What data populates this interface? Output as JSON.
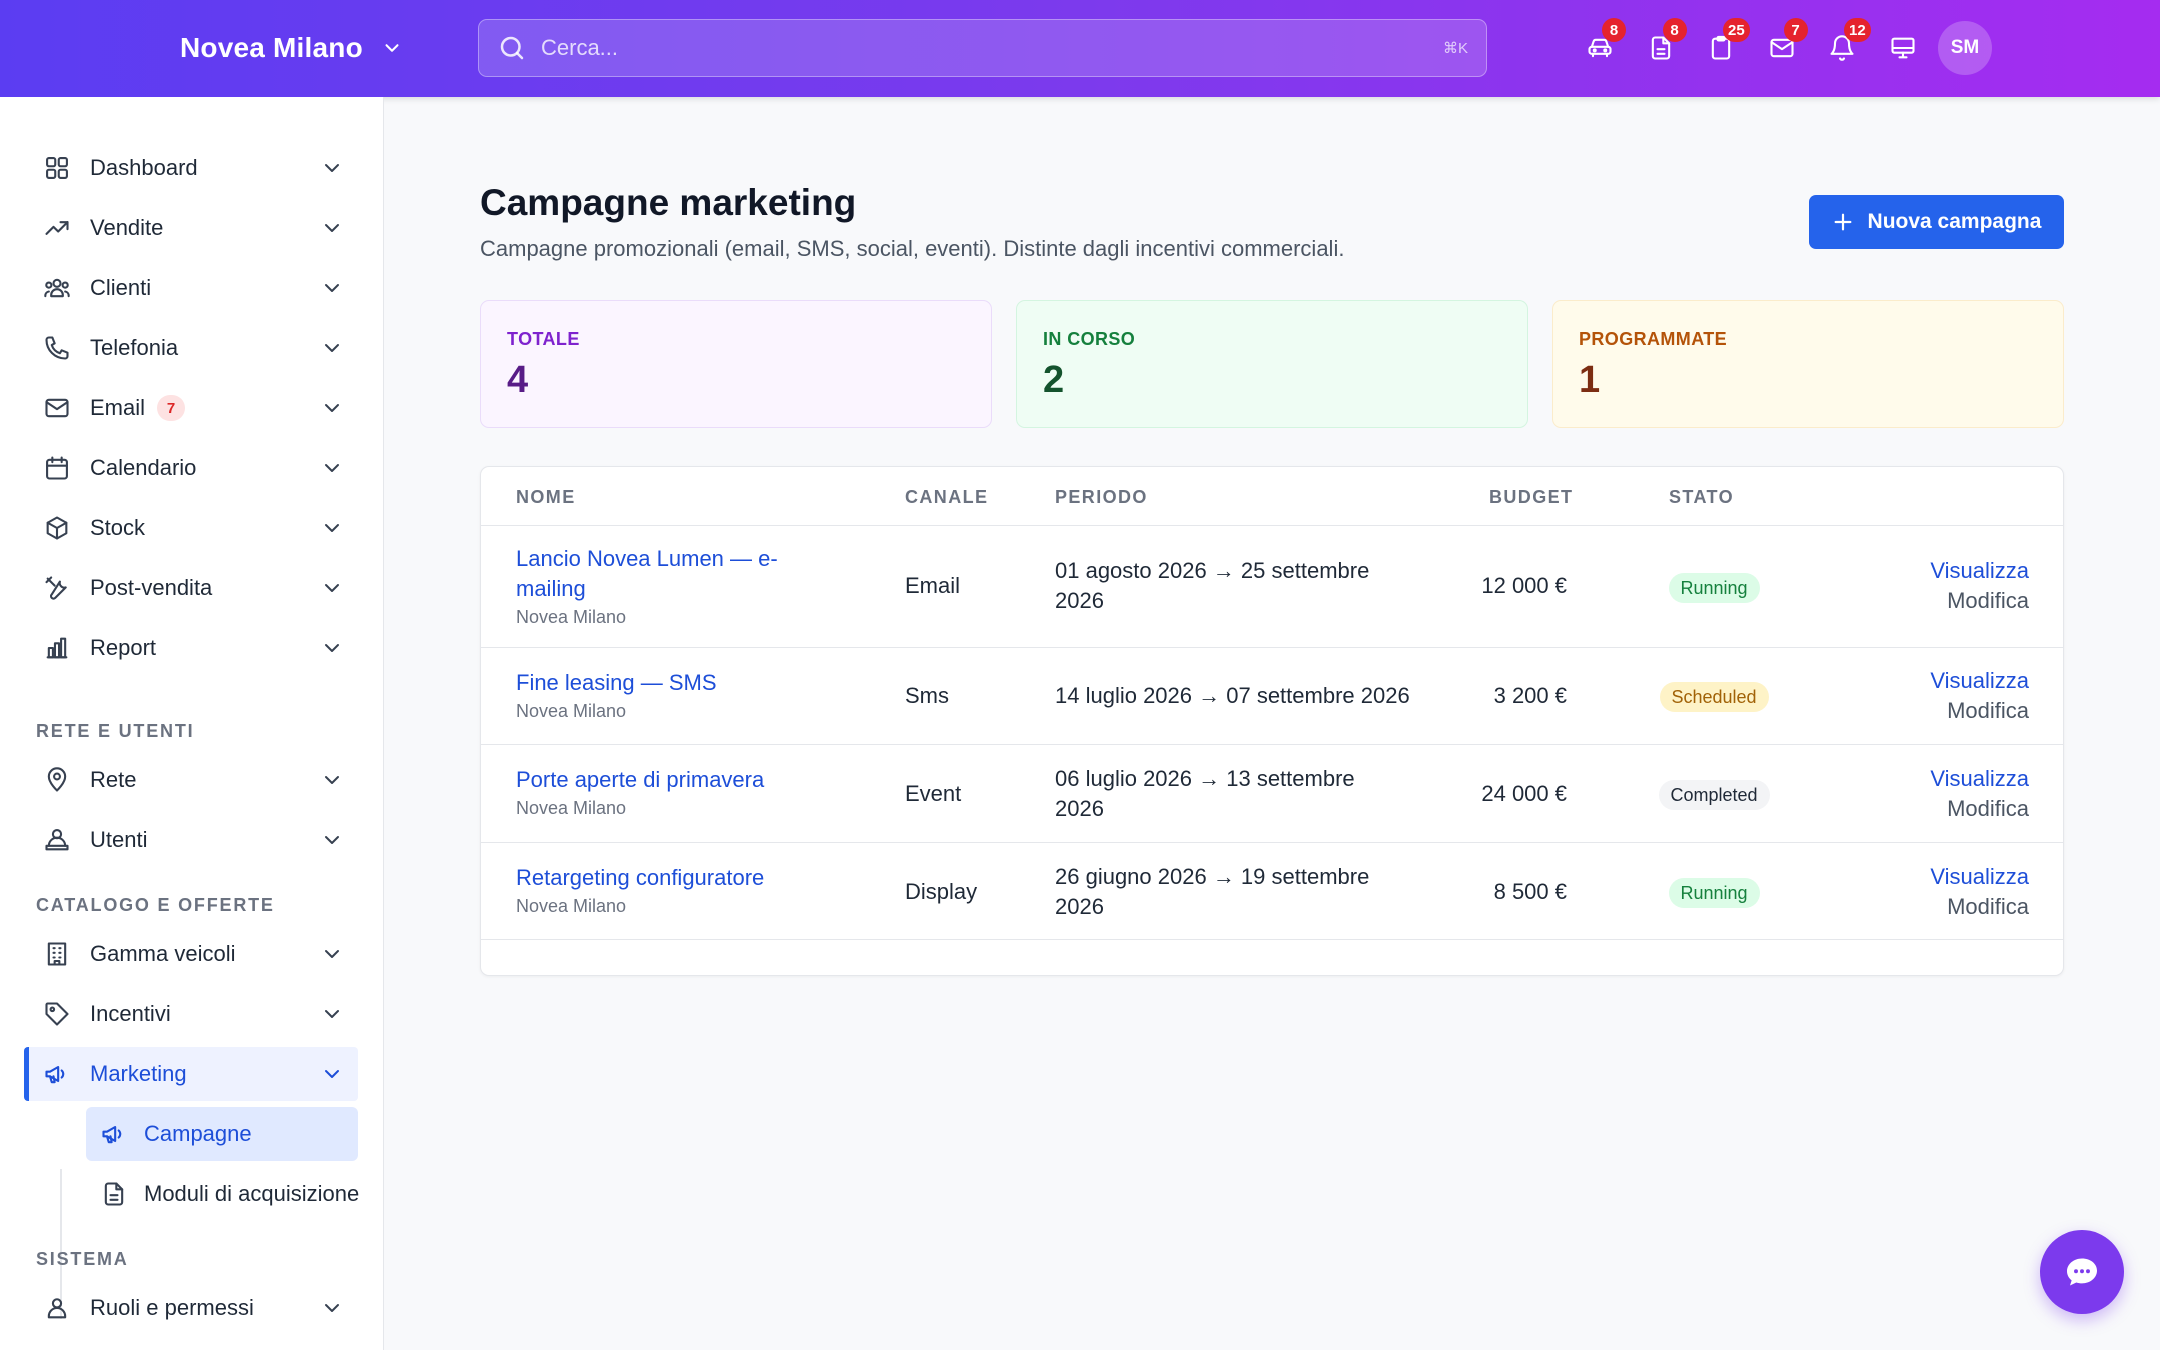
{
  "header": {
    "brand": "Novea Milano",
    "search_placeholder": "Cerca...",
    "search_shortcut": "⌘K",
    "icons": [
      {
        "name": "car-icon",
        "badge": "8"
      },
      {
        "name": "document-icon",
        "badge": "8"
      },
      {
        "name": "clipboard-icon",
        "badge": "25"
      },
      {
        "name": "mail-icon",
        "badge": "7"
      },
      {
        "name": "bell-icon",
        "badge": "12"
      },
      {
        "name": "monitor-icon",
        "badge": ""
      }
    ],
    "avatar_initials": "SM"
  },
  "sidebar": {
    "items": [
      {
        "label": "Dashboard"
      },
      {
        "label": "Vendite"
      },
      {
        "label": "Clienti"
      },
      {
        "label": "Telefonia"
      },
      {
        "label": "Email",
        "badge": "7"
      },
      {
        "label": "Calendario"
      },
      {
        "label": "Stock"
      },
      {
        "label": "Post-vendita"
      },
      {
        "label": "Report"
      }
    ],
    "section_network": "RETE E UTENTI",
    "network_items": [
      {
        "label": "Rete"
      },
      {
        "label": "Utenti"
      }
    ],
    "section_catalog": "CATALOGO E OFFERTE",
    "catalog_items": [
      {
        "label": "Gamma veicoli"
      },
      {
        "label": "Incentivi"
      },
      {
        "label": "Marketing"
      }
    ],
    "marketing_sub": [
      {
        "label": "Campagne"
      },
      {
        "label": "Moduli di acquisizione"
      }
    ],
    "section_system": "SISTEMA",
    "system_items": [
      {
        "label": "Ruoli e permessi"
      }
    ]
  },
  "main": {
    "title": "Campagne marketing",
    "subtitle": "Campagne promozionali (email, SMS, social, eventi). Distinte dagli incentivi commerciali.",
    "new_button": "Nuova campagna",
    "stats": [
      {
        "label": "TOTALE",
        "value": "4",
        "bg": "#fbf5ff",
        "border": "#eadcfa",
        "label_color": "#7e22ce",
        "value_color": "#581c87"
      },
      {
        "label": "IN CORSO",
        "value": "2",
        "bg": "#effdf4",
        "border": "#d4f5e0",
        "label_color": "#15803d",
        "value_color": "#14532d"
      },
      {
        "label": "PROGRAMMATE",
        "value": "1",
        "bg": "#fffbeb",
        "border": "#fbeccb",
        "label_color": "#b45309",
        "value_color": "#7c2d12"
      }
    ],
    "table": {
      "headers": {
        "name": "NOME",
        "channel": "CANALE",
        "period": "PERIODO",
        "budget": "BUDGET",
        "status": "STATO"
      },
      "rows": [
        {
          "name": "Lancio Novea Lumen — e-mailing",
          "org": "Novea Milano",
          "channel": "Email",
          "period": "01 agosto 2026 → 25 settembre 2026",
          "budget": "12 000 €",
          "status": "Running",
          "view": "Visualizza",
          "edit": "Modifica"
        },
        {
          "name": "Fine leasing — SMS",
          "org": "Novea Milano",
          "channel": "Sms",
          "period": "14 luglio 2026 → 07 settembre 2026",
          "budget": "3 200 €",
          "status": "Scheduled",
          "view": "Visualizza",
          "edit": "Modifica"
        },
        {
          "name": "Porte aperte di primavera",
          "org": "Novea Milano",
          "channel": "Event",
          "period": "06 luglio 2026 → 13 settembre 2026",
          "budget": "24 000 €",
          "status": "Completed",
          "view": "Visualizza",
          "edit": "Modifica"
        },
        {
          "name": "Retargeting configuratore",
          "org": "Novea Milano",
          "channel": "Display",
          "period": "26 giugno 2026 → 19 settembre 2026",
          "budget": "8 500 €",
          "status": "Running",
          "view": "Visualizza",
          "edit": "Modifica"
        }
      ]
    }
  },
  "status_colors": {
    "Running": {
      "bg": "#dcfce7",
      "fg": "#15803d"
    },
    "Scheduled": {
      "bg": "#fef3c7",
      "fg": "#a16207"
    },
    "Completed": {
      "bg": "#f3f4f6",
      "fg": "#1f2937"
    }
  },
  "colors": {
    "accent": "#2563eb",
    "header_start": "#5b3df2",
    "header_end": "#a52cf0",
    "fab": "#7c3aed"
  }
}
